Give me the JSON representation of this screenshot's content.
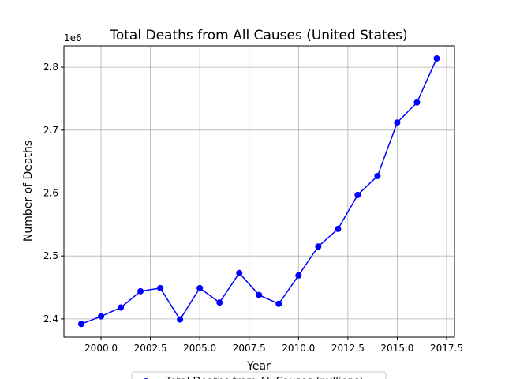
{
  "chart_data": {
    "type": "line",
    "title": "Total Deaths from All Causes (United States)",
    "x_label": "Year",
    "y_label": "Number of Deaths",
    "y_offset_label": "1e6",
    "x": [
      1999,
      2000,
      2001,
      2002,
      2003,
      2004,
      2005,
      2006,
      2007,
      2008,
      2009,
      2010,
      2011,
      2012,
      2013,
      2014,
      2015,
      2016,
      2017
    ],
    "series": [
      {
        "name": "Total Deaths from All Causes (millions)",
        "color": "#0000ff",
        "values": [
          2.392,
          2.404,
          2.418,
          2.444,
          2.449,
          2.399,
          2.449,
          2.426,
          2.473,
          2.438,
          2.424,
          2.469,
          2.515,
          2.543,
          2.597,
          2.627,
          2.712,
          2.744,
          2.814
        ]
      }
    ],
    "xlim": [
      1998.12,
      2017.9
    ],
    "xticks": [
      {
        "value": 2000,
        "label": "2000.0"
      },
      {
        "value": 2002.5,
        "label": "2002.5"
      },
      {
        "value": 2005,
        "label": "2005.0"
      },
      {
        "value": 2007.5,
        "label": "2007.5"
      },
      {
        "value": 2010,
        "label": "2010.0"
      },
      {
        "value": 2012.5,
        "label": "2012.5"
      },
      {
        "value": 2015,
        "label": "2015.0"
      },
      {
        "value": 2017.5,
        "label": "2017.5"
      }
    ],
    "ylim": [
      2.371,
      2.834
    ],
    "yticks": [
      2.4,
      2.5,
      2.6,
      2.7,
      2.8
    ],
    "grid": true,
    "legend": "bottom"
  }
}
